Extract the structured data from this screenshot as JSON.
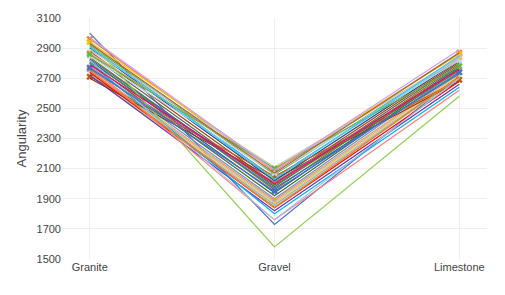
{
  "chart_data": {
    "type": "line",
    "categories": [
      "Granite",
      "Gravel",
      "Limestone"
    ],
    "ylabel": "Angularity",
    "ylim": [
      1500,
      3100
    ],
    "yticks": [
      1500,
      1700,
      1900,
      2100,
      2300,
      2500,
      2700,
      2900,
      3100
    ],
    "grid": true,
    "series": [
      {
        "values": [
          3000,
          1730,
          2720
        ],
        "color": "#4472C4",
        "marker": "none"
      },
      {
        "values": [
          2960,
          2080,
          2870
        ],
        "color": "#ED7D31",
        "marker": "x"
      },
      {
        "values": [
          2940,
          2100,
          2860
        ],
        "color": "#FFC000",
        "marker": "x"
      },
      {
        "values": [
          2920,
          2060,
          2840
        ],
        "color": "#70AD47",
        "marker": "none"
      },
      {
        "values": [
          2910,
          2040,
          2830
        ],
        "color": "#5B9BD5",
        "marker": "none"
      },
      {
        "values": [
          2900,
          2020,
          2820
        ],
        "color": "#264478",
        "marker": "none"
      },
      {
        "values": [
          2880,
          2000,
          2810
        ],
        "color": "#9E480E",
        "marker": "none"
      },
      {
        "values": [
          2860,
          1980,
          2800
        ],
        "color": "#636363",
        "marker": "none"
      },
      {
        "values": [
          2840,
          1960,
          2790
        ],
        "color": "#997300",
        "marker": "none"
      },
      {
        "values": [
          2820,
          1940,
          2780
        ],
        "color": "#255E91",
        "marker": "none"
      },
      {
        "values": [
          2800,
          1920,
          2770
        ],
        "color": "#43682B",
        "marker": "none"
      },
      {
        "values": [
          2780,
          1900,
          2760
        ],
        "color": "#698ED0",
        "marker": "none"
      },
      {
        "values": [
          2760,
          1890,
          2740
        ],
        "color": "#F1975A",
        "marker": "x"
      },
      {
        "values": [
          2750,
          1880,
          2730
        ],
        "color": "#B7B7B7",
        "marker": "none"
      },
      {
        "values": [
          2740,
          1870,
          2720
        ],
        "color": "#FFCD33",
        "marker": "none"
      },
      {
        "values": [
          2730,
          1860,
          2710
        ],
        "color": "#8FAADC",
        "marker": "none"
      },
      {
        "values": [
          2720,
          1850,
          2700
        ],
        "color": "#A9D18E",
        "marker": "none"
      },
      {
        "values": [
          2710,
          2050,
          2690
        ],
        "color": "#C55A11",
        "marker": "x"
      },
      {
        "values": [
          2700,
          2030,
          2680
        ],
        "color": "#843C0C",
        "marker": "none"
      },
      {
        "values": [
          2760,
          2010,
          2760
        ],
        "color": "#7F7F7F",
        "marker": "none"
      },
      {
        "values": [
          2810,
          1990,
          2750
        ],
        "color": "#548235",
        "marker": "none"
      },
      {
        "values": [
          2830,
          1970,
          2730
        ],
        "color": "#2E75B6",
        "marker": "none"
      },
      {
        "values": [
          2850,
          2070,
          2820
        ],
        "color": "#BDD7EE",
        "marker": "x"
      },
      {
        "values": [
          2870,
          2090,
          2840
        ],
        "color": "#F4B183",
        "marker": "x"
      },
      {
        "values": [
          2890,
          2110,
          2830
        ],
        "color": "#C9C9C9",
        "marker": "none"
      },
      {
        "values": [
          2740,
          1840,
          2680
        ],
        "color": "#FF0000",
        "marker": "none"
      },
      {
        "values": [
          2720,
          1820,
          2660
        ],
        "color": "#7030A0",
        "marker": "none"
      },
      {
        "values": [
          2800,
          1800,
          2640
        ],
        "color": "#00B0F0",
        "marker": "none"
      },
      {
        "values": [
          2950,
          1580,
          2580
        ],
        "color": "#92D050",
        "marker": "none"
      },
      {
        "values": [
          2780,
          1760,
          2620
        ],
        "color": "#FF7C80",
        "marker": "none"
      },
      {
        "values": [
          2820,
          1760,
          2700
        ],
        "color": "#9DC3E6",
        "marker": "none"
      },
      {
        "values": [
          2860,
          2100,
          2780
        ],
        "color": "#70AD47",
        "marker": "x"
      },
      {
        "values": [
          2750,
          1840,
          2710
        ],
        "color": "#ED7D31",
        "marker": "none"
      },
      {
        "values": [
          2770,
          1950,
          2740
        ],
        "color": "#4472C4",
        "marker": "x"
      },
      {
        "values": [
          2790,
          2000,
          2760
        ],
        "color": "#FF0066",
        "marker": "none"
      },
      {
        "values": [
          2910,
          2030,
          2850
        ],
        "color": "#33CCFF",
        "marker": "none"
      },
      {
        "values": [
          2930,
          2070,
          2870
        ],
        "color": "#996633",
        "marker": "none"
      },
      {
        "values": [
          2970,
          2090,
          2890
        ],
        "color": "#CC99FF",
        "marker": "none"
      }
    ]
  }
}
